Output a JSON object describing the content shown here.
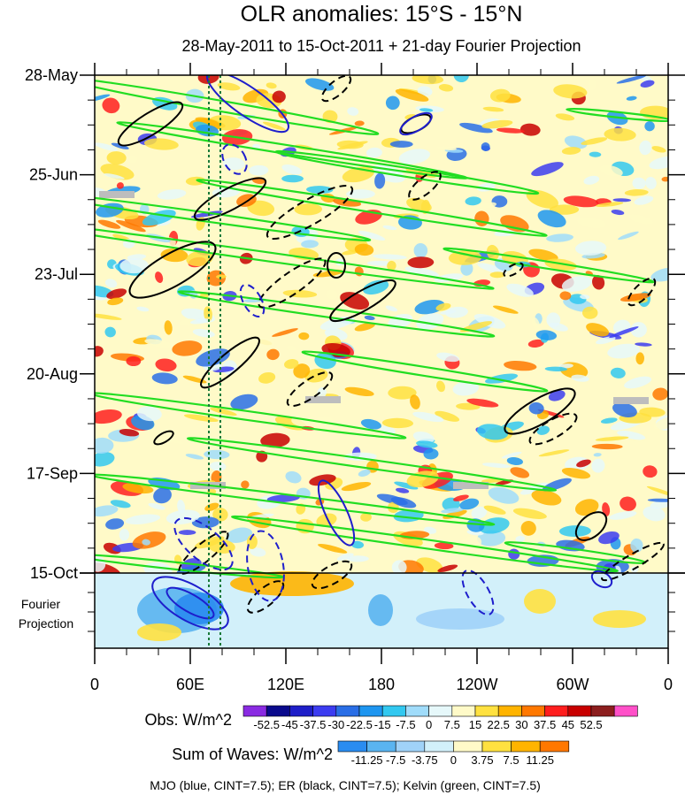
{
  "chart_data": {
    "type": "heatmap",
    "title": "OLR anomalies: 15°S - 15°N",
    "subtitle": "28-May-2011 to 15-Oct-2011 + 21-day Fourier Projection",
    "y_ticks": [
      "28-May",
      "25-Jun",
      "23-Jul",
      "20-Aug",
      "17-Sep",
      "15-Oct"
    ],
    "projection_label": [
      "Fourier",
      "Projection"
    ],
    "x_ticks": [
      "0",
      "60E",
      "120E",
      "180",
      "120W",
      "60W",
      "0"
    ],
    "x_range_deg": [
      0,
      360
    ],
    "obs_colorbar": {
      "label": "Obs: W/m^2",
      "levels": [
        "-52.5",
        "-45",
        "-37.5",
        "-30",
        "-22.5",
        "-15",
        "-7.5",
        "0",
        "7.5",
        "15",
        "22.5",
        "30",
        "37.5",
        "45",
        "52.5"
      ],
      "colors": [
        "#8a2be2",
        "#0a0a8c",
        "#1e1ec8",
        "#3c3cf0",
        "#2a6ee6",
        "#1e96f0",
        "#32c8f0",
        "#a0dcfa",
        "#e6f8fa",
        "#fffac8",
        "#ffe140",
        "#ffb400",
        "#ff7800",
        "#ff1e1e",
        "#c80000",
        "#8c1e1e",
        "#ff50c8"
      ]
    },
    "waves_colorbar": {
      "label": "Sum of Waves: W/m^2",
      "levels": [
        "-11.25",
        "-7.5",
        "-3.75",
        "0",
        "3.75",
        "7.5",
        "11.25"
      ],
      "colors": [
        "#2a8cf0",
        "#5ab4f0",
        "#a0d2f8",
        "#d2f0fa",
        "#fffac8",
        "#ffe140",
        "#ffb400",
        "#ff7800"
      ]
    },
    "contours_legend": "MJO (blue, CINT=7.5); ER (black, CINT=7.5); Kelvin (green, CINT=7.5)",
    "series_colors": {
      "MJO": "#1e1ecc",
      "ER": "#000000",
      "Kelvin": "#22dd22"
    }
  }
}
